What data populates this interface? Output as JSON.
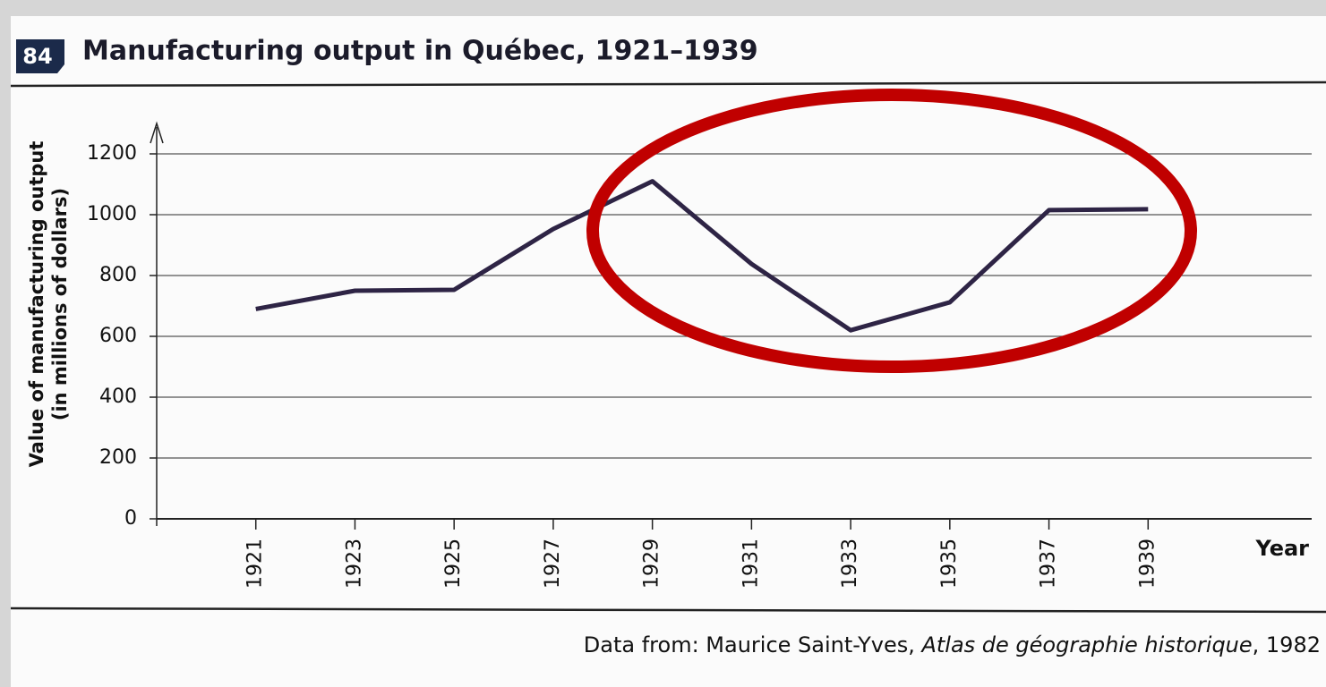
{
  "badge": "84",
  "chart_data": {
    "type": "line",
    "title": "Manufacturing output in Québec, 1921–1939",
    "y_label": [
      "Value of manufacturing output",
      "(in millions of dollars)"
    ],
    "x_label": "Year",
    "source": {
      "prefix": "Data from: Maurice Saint-Yves, ",
      "work": "Atlas de géographie historique",
      "suffix": ", 1982"
    },
    "x": [
      1921,
      1923,
      1925,
      1927,
      1929,
      1931,
      1933,
      1935,
      1937,
      1939
    ],
    "series": [
      {
        "color": "#2e2445",
        "values": [
          690,
          750,
          753,
          953,
          1110,
          838,
          620,
          712,
          1015,
          1018
        ]
      }
    ],
    "xlim": [
      1919,
      1942.3
    ],
    "xticks": [
      1921,
      1923,
      1925,
      1927,
      1929,
      1931,
      1933,
      1935,
      1937,
      1939
    ],
    "ylim": [
      0,
      1300
    ],
    "yticks": [
      0,
      200,
      400,
      600,
      800,
      1000,
      1200
    ],
    "grid": true
  }
}
